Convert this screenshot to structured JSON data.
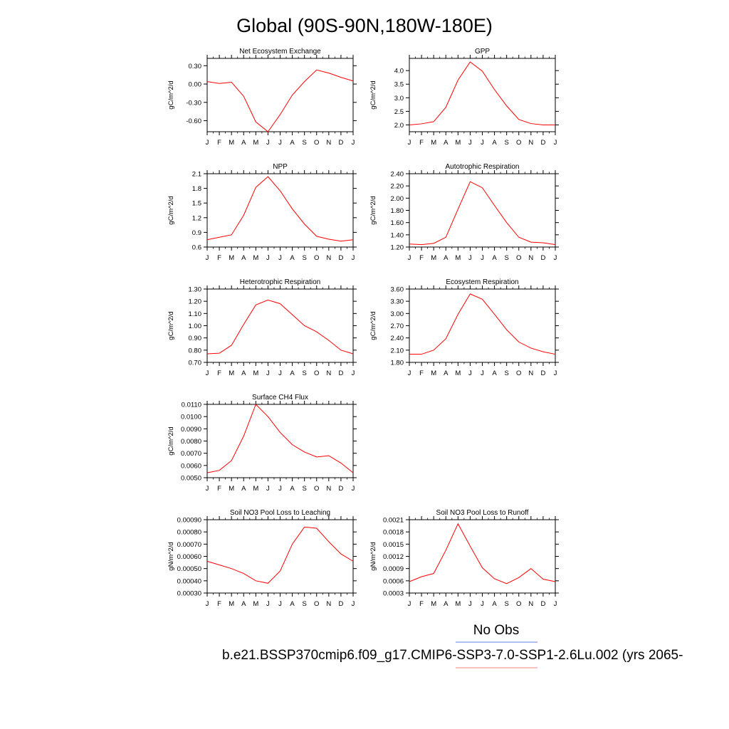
{
  "title": "Global (90S-90N,180W-180E)",
  "legend": {
    "obs_label": "No Obs",
    "obs_color": "#6a7be0",
    "case_label": "b.e21.BSSP370cmip6.f09_g17.CMIP6-SSP3-7.0-SSP1-2.6Lu.002 (yrs 2065-",
    "case_color": "#f08080"
  },
  "line_color": "#ff0000",
  "chart_data": [
    {
      "type": "line",
      "title": "Net Ecosystem Exchange",
      "ylabel": "gC/m^2/d",
      "categories": [
        "J",
        "F",
        "M",
        "A",
        "M",
        "J",
        "J",
        "A",
        "S",
        "O",
        "N",
        "D",
        "J"
      ],
      "yticks": [
        "0.30",
        "0.00",
        "-0.30",
        "-0.60"
      ],
      "ytick_values": [
        0.3,
        0.0,
        -0.3,
        -0.6
      ],
      "ylim": [
        -0.78,
        0.42
      ],
      "values": [
        0.04,
        0.01,
        0.03,
        -0.2,
        -0.62,
        -0.78,
        -0.5,
        -0.18,
        0.04,
        0.23,
        0.18,
        0.11,
        0.05
      ]
    },
    {
      "type": "line",
      "title": "GPP",
      "ylabel": "gC/m^2/d",
      "categories": [
        "J",
        "F",
        "M",
        "A",
        "M",
        "J",
        "J",
        "A",
        "S",
        "O",
        "N",
        "D",
        "J"
      ],
      "yticks": [
        "4.0",
        "3.5",
        "3.0",
        "2.5",
        "2.0"
      ],
      "ytick_values": [
        4.0,
        3.5,
        3.0,
        2.5,
        2.0
      ],
      "ylim": [
        1.75,
        4.45
      ],
      "values": [
        2.0,
        2.04,
        2.12,
        2.65,
        3.65,
        4.32,
        3.98,
        3.3,
        2.7,
        2.2,
        2.05,
        2.0,
        2.0
      ]
    },
    {
      "type": "line",
      "title": "NPP",
      "ylabel": "gC/m^2/d",
      "categories": [
        "J",
        "F",
        "M",
        "A",
        "M",
        "J",
        "J",
        "A",
        "S",
        "O",
        "N",
        "D",
        "J"
      ],
      "yticks": [
        "2.1",
        "1.8",
        "1.5",
        "1.2",
        "0.9",
        "0.6"
      ],
      "ytick_values": [
        2.1,
        1.8,
        1.5,
        1.2,
        0.9,
        0.6
      ],
      "ylim": [
        0.6,
        2.1
      ],
      "values": [
        0.75,
        0.8,
        0.85,
        1.25,
        1.82,
        2.04,
        1.75,
        1.38,
        1.07,
        0.82,
        0.76,
        0.72,
        0.75
      ]
    },
    {
      "type": "line",
      "title": "Autotrophic Respiration",
      "ylabel": "gC/m^2/d",
      "categories": [
        "J",
        "F",
        "M",
        "A",
        "M",
        "J",
        "J",
        "A",
        "S",
        "O",
        "N",
        "D",
        "J"
      ],
      "yticks": [
        "2.40",
        "2.20",
        "2.00",
        "1.80",
        "1.60",
        "1.40",
        "1.20"
      ],
      "ytick_values": [
        2.4,
        2.2,
        2.0,
        1.8,
        1.6,
        1.4,
        1.2
      ],
      "ylim": [
        1.2,
        2.4
      ],
      "values": [
        1.25,
        1.24,
        1.26,
        1.36,
        1.82,
        2.27,
        2.17,
        1.88,
        1.6,
        1.36,
        1.28,
        1.27,
        1.24
      ]
    },
    {
      "type": "line",
      "title": "Heterotrophic Respiration",
      "ylabel": "gC/m^2/d",
      "categories": [
        "J",
        "F",
        "M",
        "A",
        "M",
        "J",
        "J",
        "A",
        "S",
        "O",
        "N",
        "D",
        "J"
      ],
      "yticks": [
        "1.30",
        "1.20",
        "1.10",
        "1.00",
        "0.90",
        "0.80",
        "0.70"
      ],
      "ytick_values": [
        1.3,
        1.2,
        1.1,
        1.0,
        0.9,
        0.8,
        0.7
      ],
      "ylim": [
        0.7,
        1.3
      ],
      "values": [
        0.77,
        0.775,
        0.84,
        1.01,
        1.17,
        1.21,
        1.18,
        1.09,
        1.0,
        0.95,
        0.88,
        0.8,
        0.77
      ]
    },
    {
      "type": "line",
      "title": "Ecosystem Respiration",
      "ylabel": "gC/m^2/d",
      "categories": [
        "J",
        "F",
        "M",
        "A",
        "M",
        "J",
        "J",
        "A",
        "S",
        "O",
        "N",
        "D",
        "J"
      ],
      "yticks": [
        "3.60",
        "3.30",
        "3.00",
        "2.70",
        "2.40",
        "2.10",
        "1.80"
      ],
      "ytick_values": [
        3.6,
        3.3,
        3.0,
        2.7,
        2.4,
        2.1,
        1.8
      ],
      "ylim": [
        1.8,
        3.6
      ],
      "values": [
        2.0,
        2.0,
        2.1,
        2.38,
        2.98,
        3.48,
        3.35,
        2.98,
        2.6,
        2.3,
        2.15,
        2.06,
        2.0
      ]
    },
    {
      "type": "line",
      "title": "Surface CH4 Flux",
      "ylabel": "gC/m^2/d",
      "categories": [
        "J",
        "F",
        "M",
        "A",
        "M",
        "J",
        "J",
        "A",
        "S",
        "O",
        "N",
        "D",
        "J"
      ],
      "yticks": [
        "0.0110",
        "0.0100",
        "0.0090",
        "0.0080",
        "0.0070",
        "0.0060",
        "0.0050"
      ],
      "ytick_values": [
        0.011,
        0.01,
        0.009,
        0.008,
        0.007,
        0.006,
        0.005
      ],
      "ylim": [
        0.005,
        0.011
      ],
      "values": [
        0.0054,
        0.0056,
        0.0064,
        0.0084,
        0.011,
        0.01,
        0.0087,
        0.0077,
        0.0071,
        0.0067,
        0.0068,
        0.0062,
        0.0054
      ]
    },
    {
      "type": "line",
      "title": "Soil NO3 Pool Loss to Leaching",
      "ylabel": "gN/m^2/d",
      "categories": [
        "J",
        "F",
        "M",
        "A",
        "M",
        "J",
        "J",
        "A",
        "S",
        "O",
        "N",
        "D",
        "J"
      ],
      "yticks": [
        "0.00090",
        "0.00080",
        "0.00070",
        "0.00060",
        "0.00050",
        "0.00040",
        "0.00030"
      ],
      "ytick_values": [
        0.0009,
        0.0008,
        0.0007,
        0.0006,
        0.0005,
        0.0004,
        0.0003
      ],
      "ylim": [
        0.0003,
        0.0009
      ],
      "values": [
        0.00056,
        0.00053,
        0.0005,
        0.00046,
        0.0004,
        0.00038,
        0.00048,
        0.0007,
        0.00084,
        0.00083,
        0.00072,
        0.00062,
        0.00056
      ]
    },
    {
      "type": "line",
      "title": "Soil NO3 Pool Loss to Runoff",
      "ylabel": "gN/m^2/d",
      "categories": [
        "J",
        "F",
        "M",
        "A",
        "M",
        "J",
        "J",
        "A",
        "S",
        "O",
        "N",
        "D",
        "J"
      ],
      "yticks": [
        "0.0021",
        "0.0018",
        "0.0015",
        "0.0012",
        "0.0009",
        "0.0006",
        "0.0003"
      ],
      "ytick_values": [
        0.0021,
        0.0018,
        0.0015,
        0.0012,
        0.0009,
        0.0006,
        0.0003
      ],
      "ylim": [
        0.0003,
        0.0021
      ],
      "values": [
        0.00058,
        0.0007,
        0.00078,
        0.00135,
        0.002,
        0.00145,
        0.00092,
        0.00065,
        0.00053,
        0.00068,
        0.0009,
        0.00064,
        0.00058
      ]
    }
  ]
}
